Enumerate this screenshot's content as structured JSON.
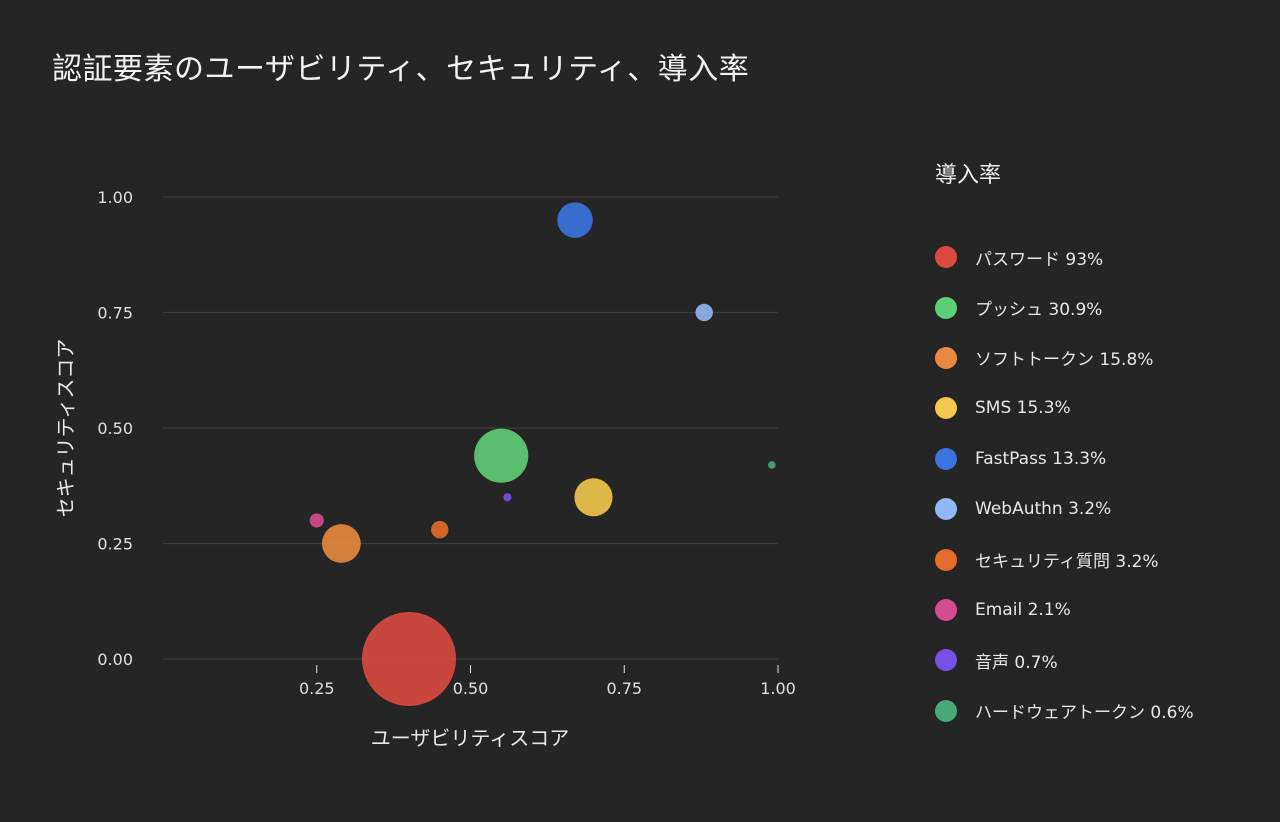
{
  "title": "認証要素のユーザビリティ、セキュリティ、導入率",
  "legend": {
    "title": "導入率",
    "items": [
      {
        "label": "パスワード 93%",
        "color": "#db4a40"
      },
      {
        "label": "プッシュ 30.9%",
        "color": "#5fcf75"
      },
      {
        "label": "ソフトトークン 15.8%",
        "color": "#e8893f"
      },
      {
        "label": "SMS 15.3%",
        "color": "#f2c94c"
      },
      {
        "label": "FastPass 13.3%",
        "color": "#3b74e0"
      },
      {
        "label": "WebAuthn 3.2%",
        "color": "#8fb8f5"
      },
      {
        "label": "セキュリティ質問 3.2%",
        "color": "#e56b2a"
      },
      {
        "label": "Email 2.1%",
        "color": "#d44e8f"
      },
      {
        "label": "音声 0.7%",
        "color": "#7652e8"
      },
      {
        "label": "ハードウェアトークン 0.6%",
        "color": "#47a978"
      }
    ]
  },
  "axes": {
    "xlabel": "ユーザビリティスコア",
    "ylabel": "セキュリティスコア",
    "xticks": [
      "0.25",
      "0.50",
      "0.75",
      "1.00"
    ],
    "yticks": [
      "0.00",
      "0.25",
      "0.50",
      "0.75",
      "1.00"
    ]
  },
  "chart_data": {
    "type": "scatter",
    "subtype": "bubble",
    "title": "認証要素のユーザビリティ、セキュリティ、導入率",
    "xlabel": "ユーザビリティスコア",
    "ylabel": "セキュリティスコア",
    "size_label": "導入率",
    "xlim": [
      0,
      1.0
    ],
    "ylim": [
      0,
      1.0
    ],
    "xticks": [
      0.25,
      0.5,
      0.75,
      1.0
    ],
    "yticks": [
      0,
      0.25,
      0.5,
      0.75,
      1.0
    ],
    "grid": "horizontal",
    "legend_position": "right",
    "series": [
      {
        "name": "パスワード",
        "x": 0.4,
        "y": 0.0,
        "size": 93,
        "color": "#db4a40"
      },
      {
        "name": "プッシュ",
        "x": 0.55,
        "y": 0.44,
        "size": 30.9,
        "color": "#5fcf75"
      },
      {
        "name": "ソフトトークン",
        "x": 0.29,
        "y": 0.25,
        "size": 15.8,
        "color": "#e8893f"
      },
      {
        "name": "SMS",
        "x": 0.7,
        "y": 0.35,
        "size": 15.3,
        "color": "#f2c94c"
      },
      {
        "name": "FastPass",
        "x": 0.67,
        "y": 0.95,
        "size": 13.3,
        "color": "#3b74e0"
      },
      {
        "name": "WebAuthn",
        "x": 0.88,
        "y": 0.75,
        "size": 3.2,
        "color": "#8fb8f5"
      },
      {
        "name": "セキュリティ質問",
        "x": 0.45,
        "y": 0.28,
        "size": 3.2,
        "color": "#e56b2a"
      },
      {
        "name": "Email",
        "x": 0.25,
        "y": 0.3,
        "size": 2.1,
        "color": "#d44e8f"
      },
      {
        "name": "音声",
        "x": 0.56,
        "y": 0.35,
        "size": 0.7,
        "color": "#7652e8"
      },
      {
        "name": "ハードウェアトークン",
        "x": 0.99,
        "y": 0.42,
        "size": 0.6,
        "color": "#47a978"
      }
    ]
  }
}
